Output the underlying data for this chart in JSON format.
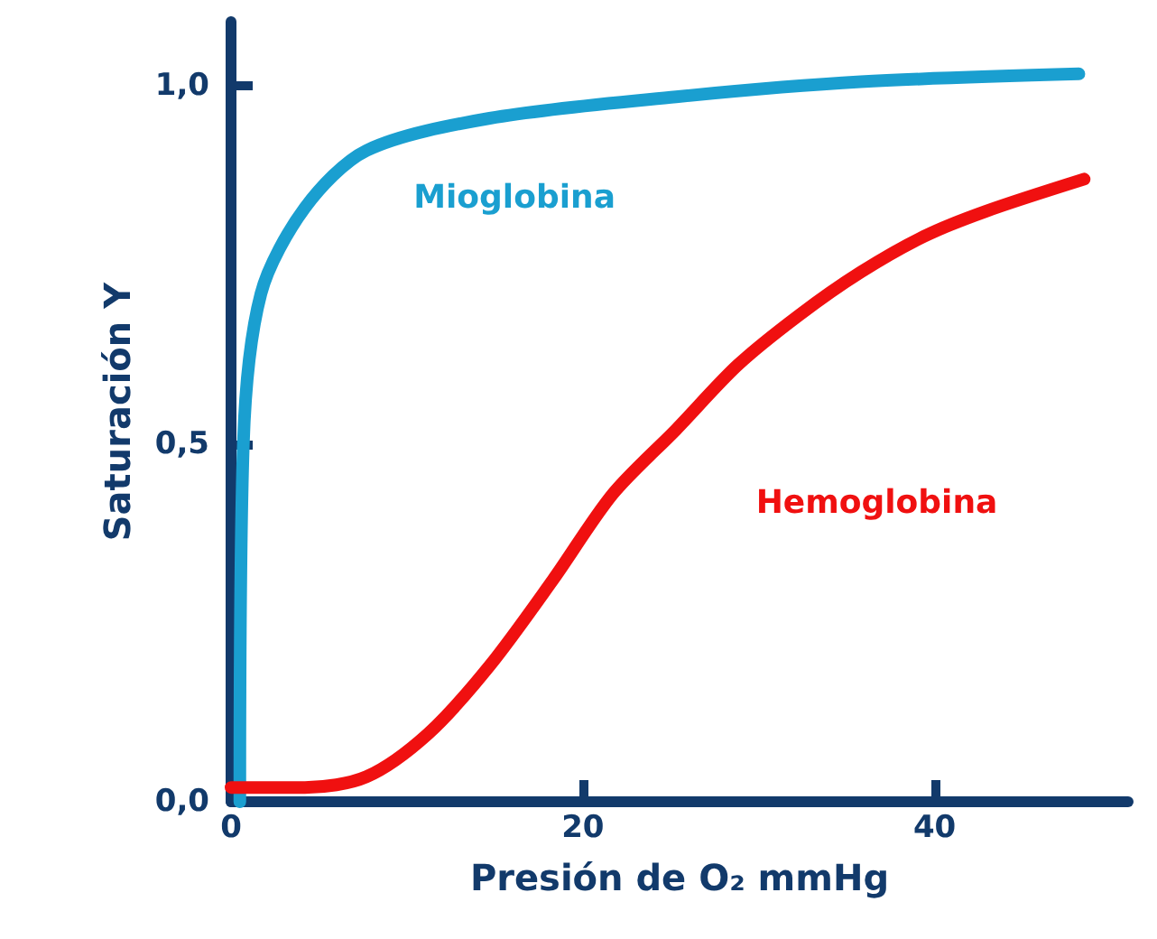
{
  "chart_data": {
    "type": "line",
    "xlabel": "Presión de O₂ mmHg",
    "ylabel": "Saturación Y",
    "xlim": [
      0,
      51
    ],
    "xticks": [
      0,
      20,
      40
    ],
    "ylim": [
      0,
      1.09
    ],
    "yticks": [
      {
        "value": 0,
        "label": "0,0"
      },
      {
        "value": 0.5,
        "label": "0,5"
      },
      {
        "value": 1,
        "label": "1,0"
      }
    ],
    "grid": false,
    "legend": false,
    "line_style": "solid",
    "series": [
      {
        "name": "Mioglobina",
        "color": "#1a9fd0",
        "x": [
          0.5,
          0.7,
          1.7,
          4.2,
          7.7,
          14.7,
          25.3,
          35.8,
          48.2
        ],
        "values": [
          0,
          0.5,
          0.71,
          0.83,
          0.91,
          0.955,
          0.985,
          1.006,
          1.017
        ]
      },
      {
        "name": "Hemoglobina",
        "color": "#f01010",
        "x": [
          0,
          4.2,
          7.7,
          11.2,
          14.7,
          18.3,
          21.7,
          25.3,
          28.8,
          32.3,
          35.8,
          39.4,
          42.9,
          48.5
        ],
        "values": [
          0.02,
          0.02,
          0.035,
          0.095,
          0.19,
          0.31,
          0.43,
          0.52,
          0.61,
          0.68,
          0.74,
          0.79,
          0.825,
          0.87
        ]
      }
    ]
  }
}
